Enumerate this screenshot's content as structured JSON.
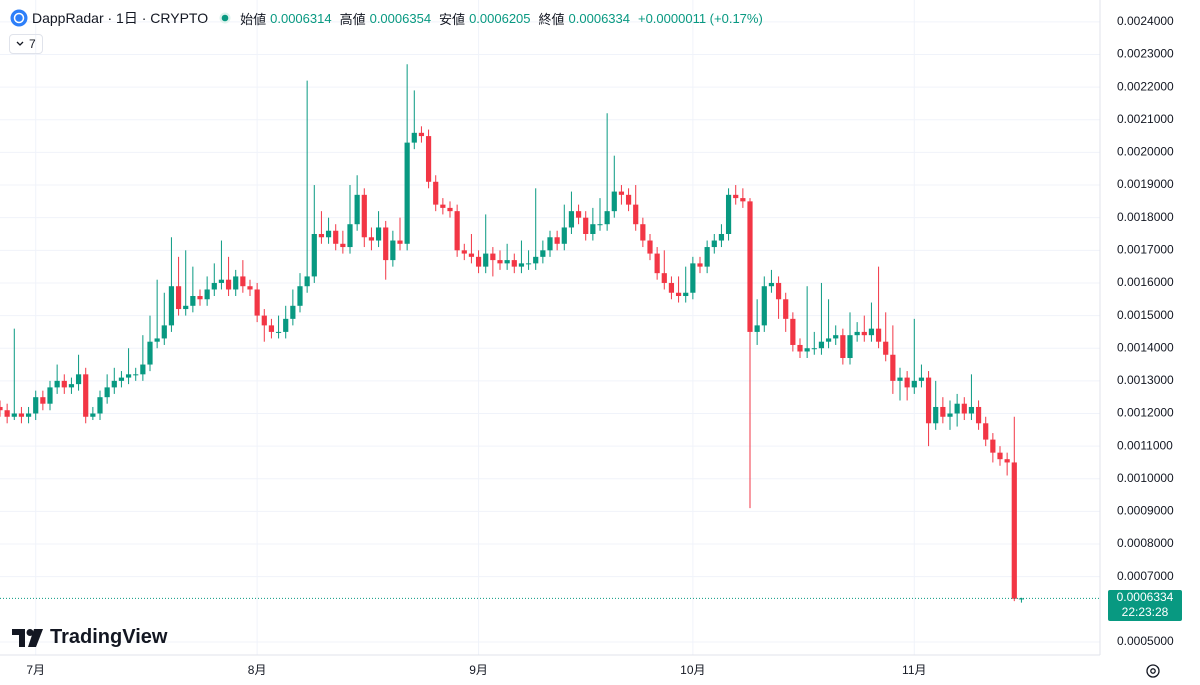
{
  "chart_data": {
    "type": "candlestick",
    "title": "DappRadar · 1日 · CRYPTO",
    "ohlc_labels": [
      "始値",
      "高値",
      "安値",
      "終値"
    ],
    "change": "+0.0000011 (+0.17%)",
    "indicator": "7",
    "brand": "TradingView",
    "countdown": "22:23:28",
    "up_color": "#089981",
    "down_color": "#f23645",
    "grid": true,
    "xlim": [
      0,
      154
    ],
    "xticks": [
      {
        "value": 5,
        "label": "7月"
      },
      {
        "value": 36,
        "label": "8月"
      },
      {
        "value": 67,
        "label": "9月"
      },
      {
        "value": 97,
        "label": "10月"
      },
      {
        "value": 128,
        "label": "11月"
      }
    ],
    "ylim": [
      0.00046,
      0.002467
    ],
    "yticks": [
      {
        "value": 0.0005,
        "label": "0.0005000"
      },
      {
        "value": 0.0007,
        "label": "0.0007000"
      },
      {
        "value": 0.0008,
        "label": "0.0008000"
      },
      {
        "value": 0.0009,
        "label": "0.0009000"
      },
      {
        "value": 0.001,
        "label": "0.0010000"
      },
      {
        "value": 0.0011,
        "label": "0.0011000"
      },
      {
        "value": 0.0012,
        "label": "0.0012000"
      },
      {
        "value": 0.0013,
        "label": "0.0013000"
      },
      {
        "value": 0.0014,
        "label": "0.0014000"
      },
      {
        "value": 0.0015,
        "label": "0.0015000"
      },
      {
        "value": 0.0016,
        "label": "0.0016000"
      },
      {
        "value": 0.0017,
        "label": "0.0017000"
      },
      {
        "value": 0.0018,
        "label": "0.0018000"
      },
      {
        "value": 0.0019,
        "label": "0.0019000"
      },
      {
        "value": 0.002,
        "label": "0.0020000"
      },
      {
        "value": 0.0021,
        "label": "0.0021000"
      },
      {
        "value": 0.0022,
        "label": "0.0022000"
      },
      {
        "value": 0.0023,
        "label": "0.0023000"
      },
      {
        "value": 0.0024,
        "label": "0.0024000"
      }
    ],
    "candles": [
      [
        0.00122,
        0.00124,
        0.00119,
        0.00121
      ],
      [
        0.00121,
        0.00123,
        0.00117,
        0.00119
      ],
      [
        0.00119,
        0.00146,
        0.00118,
        0.0012
      ],
      [
        0.0012,
        0.00122,
        0.00117,
        0.00119
      ],
      [
        0.00119,
        0.00122,
        0.00117,
        0.0012
      ],
      [
        0.0012,
        0.00127,
        0.00118,
        0.00125
      ],
      [
        0.00125,
        0.00127,
        0.00121,
        0.00123
      ],
      [
        0.00123,
        0.0013,
        0.00121,
        0.00128
      ],
      [
        0.00128,
        0.00135,
        0.00126,
        0.0013
      ],
      [
        0.0013,
        0.00132,
        0.00126,
        0.00128
      ],
      [
        0.00128,
        0.00131,
        0.00126,
        0.00129
      ],
      [
        0.00129,
        0.00138,
        0.00127,
        0.00132
      ],
      [
        0.00132,
        0.00134,
        0.00117,
        0.00119
      ],
      [
        0.00119,
        0.00122,
        0.00118,
        0.0012
      ],
      [
        0.0012,
        0.00127,
        0.00118,
        0.00125
      ],
      [
        0.00125,
        0.00132,
        0.00123,
        0.00128
      ],
      [
        0.00128,
        0.00134,
        0.00126,
        0.0013
      ],
      [
        0.0013,
        0.00133,
        0.00128,
        0.00131
      ],
      [
        0.00131,
        0.0014,
        0.00129,
        0.00132
      ],
      [
        0.00132,
        0.00134,
        0.0013,
        0.00132
      ],
      [
        0.00132,
        0.00144,
        0.0013,
        0.00135
      ],
      [
        0.00135,
        0.0015,
        0.00133,
        0.00142
      ],
      [
        0.00142,
        0.00161,
        0.0014,
        0.00143
      ],
      [
        0.00143,
        0.00157,
        0.00141,
        0.00147
      ],
      [
        0.00147,
        0.00174,
        0.00145,
        0.00159
      ],
      [
        0.00159,
        0.00168,
        0.0015,
        0.00152
      ],
      [
        0.00152,
        0.0017,
        0.0015,
        0.00153
      ],
      [
        0.00153,
        0.00165,
        0.00151,
        0.00156
      ],
      [
        0.00156,
        0.00158,
        0.00153,
        0.00155
      ],
      [
        0.00155,
        0.00162,
        0.00153,
        0.00158
      ],
      [
        0.00158,
        0.00166,
        0.00156,
        0.0016
      ],
      [
        0.0016,
        0.00173,
        0.00158,
        0.00161
      ],
      [
        0.00161,
        0.00168,
        0.00156,
        0.00158
      ],
      [
        0.00158,
        0.00164,
        0.00156,
        0.00162
      ],
      [
        0.00162,
        0.00167,
        0.00157,
        0.00159
      ],
      [
        0.00159,
        0.00161,
        0.00156,
        0.00158
      ],
      [
        0.00158,
        0.0016,
        0.00148,
        0.0015
      ],
      [
        0.0015,
        0.00152,
        0.00142,
        0.00147
      ],
      [
        0.00147,
        0.00149,
        0.00143,
        0.00145
      ],
      [
        0.00145,
        0.0015,
        0.00143,
        0.00145
      ],
      [
        0.00145,
        0.00153,
        0.00143,
        0.00149
      ],
      [
        0.00149,
        0.00158,
        0.00147,
        0.00153
      ],
      [
        0.00153,
        0.00163,
        0.00151,
        0.00159
      ],
      [
        0.00159,
        0.00222,
        0.00157,
        0.00162
      ],
      [
        0.00162,
        0.0019,
        0.0016,
        0.00175
      ],
      [
        0.00175,
        0.00182,
        0.00172,
        0.00174
      ],
      [
        0.00174,
        0.0018,
        0.00172,
        0.00176
      ],
      [
        0.00176,
        0.00178,
        0.0017,
        0.00172
      ],
      [
        0.00172,
        0.00176,
        0.00169,
        0.00171
      ],
      [
        0.00171,
        0.0019,
        0.00169,
        0.00178
      ],
      [
        0.00178,
        0.00193,
        0.00176,
        0.00187
      ],
      [
        0.00187,
        0.00189,
        0.00171,
        0.00174
      ],
      [
        0.00174,
        0.00177,
        0.0017,
        0.00173
      ],
      [
        0.00173,
        0.00182,
        0.00171,
        0.00177
      ],
      [
        0.00177,
        0.00179,
        0.00161,
        0.00167
      ],
      [
        0.00167,
        0.00176,
        0.00165,
        0.00173
      ],
      [
        0.00173,
        0.0018,
        0.0017,
        0.00172
      ],
      [
        0.00172,
        0.00227,
        0.0017,
        0.00203
      ],
      [
        0.00203,
        0.00219,
        0.00201,
        0.00206
      ],
      [
        0.00206,
        0.00208,
        0.00203,
        0.00205
      ],
      [
        0.00205,
        0.00207,
        0.00189,
        0.00191
      ],
      [
        0.00191,
        0.00193,
        0.00182,
        0.00184
      ],
      [
        0.00184,
        0.00186,
        0.00181,
        0.00183
      ],
      [
        0.00183,
        0.00185,
        0.0018,
        0.00182
      ],
      [
        0.00182,
        0.00184,
        0.00168,
        0.0017
      ],
      [
        0.0017,
        0.00172,
        0.00167,
        0.00169
      ],
      [
        0.00169,
        0.00175,
        0.00166,
        0.00168
      ],
      [
        0.00168,
        0.0017,
        0.00163,
        0.00165
      ],
      [
        0.00165,
        0.00181,
        0.00163,
        0.00169
      ],
      [
        0.00169,
        0.00171,
        0.00162,
        0.00167
      ],
      [
        0.00167,
        0.0017,
        0.00164,
        0.00166
      ],
      [
        0.00166,
        0.00172,
        0.00164,
        0.00167
      ],
      [
        0.00167,
        0.00169,
        0.00163,
        0.00165
      ],
      [
        0.00165,
        0.00173,
        0.00163,
        0.00166
      ],
      [
        0.00166,
        0.0017,
        0.00164,
        0.00166
      ],
      [
        0.00166,
        0.00189,
        0.00164,
        0.00168
      ],
      [
        0.00168,
        0.00173,
        0.00166,
        0.0017
      ],
      [
        0.0017,
        0.00176,
        0.00168,
        0.00174
      ],
      [
        0.00174,
        0.00176,
        0.0017,
        0.00172
      ],
      [
        0.00172,
        0.00184,
        0.0017,
        0.00177
      ],
      [
        0.00177,
        0.00188,
        0.00175,
        0.00182
      ],
      [
        0.00182,
        0.00184,
        0.00178,
        0.0018
      ],
      [
        0.0018,
        0.00182,
        0.00173,
        0.00175
      ],
      [
        0.00175,
        0.00183,
        0.00173,
        0.00178
      ],
      [
        0.00178,
        0.00186,
        0.00176,
        0.00178
      ],
      [
        0.00178,
        0.00212,
        0.00176,
        0.00182
      ],
      [
        0.00182,
        0.00199,
        0.0018,
        0.00188
      ],
      [
        0.00188,
        0.0019,
        0.00184,
        0.00187
      ],
      [
        0.00187,
        0.00189,
        0.00182,
        0.00184
      ],
      [
        0.00184,
        0.0019,
        0.00176,
        0.00178
      ],
      [
        0.00178,
        0.0018,
        0.00171,
        0.00173
      ],
      [
        0.00173,
        0.00175,
        0.00167,
        0.00169
      ],
      [
        0.00169,
        0.00171,
        0.00161,
        0.00163
      ],
      [
        0.00163,
        0.0017,
        0.00158,
        0.0016
      ],
      [
        0.0016,
        0.00162,
        0.00155,
        0.00157
      ],
      [
        0.00157,
        0.00162,
        0.00154,
        0.00156
      ],
      [
        0.00156,
        0.00165,
        0.00154,
        0.00157
      ],
      [
        0.00157,
        0.00168,
        0.00155,
        0.00166
      ],
      [
        0.00166,
        0.00168,
        0.00163,
        0.00165
      ],
      [
        0.00165,
        0.00173,
        0.00163,
        0.00171
      ],
      [
        0.00171,
        0.00175,
        0.00169,
        0.00173
      ],
      [
        0.00173,
        0.00178,
        0.00171,
        0.00175
      ],
      [
        0.00175,
        0.00189,
        0.00173,
        0.00187
      ],
      [
        0.00187,
        0.0019,
        0.00184,
        0.00186
      ],
      [
        0.00186,
        0.00189,
        0.00183,
        0.00185
      ],
      [
        0.00185,
        0.00186,
        0.00091,
        0.00145
      ],
      [
        0.00145,
        0.00155,
        0.00141,
        0.00147
      ],
      [
        0.00147,
        0.00162,
        0.00145,
        0.00159
      ],
      [
        0.00159,
        0.00164,
        0.00157,
        0.0016
      ],
      [
        0.0016,
        0.00162,
        0.00149,
        0.00155
      ],
      [
        0.00155,
        0.00157,
        0.00145,
        0.00149
      ],
      [
        0.00149,
        0.00151,
        0.00139,
        0.00141
      ],
      [
        0.00141,
        0.00143,
        0.00137,
        0.00139
      ],
      [
        0.00139,
        0.00159,
        0.00137,
        0.0014
      ],
      [
        0.0014,
        0.00145,
        0.00138,
        0.0014
      ],
      [
        0.0014,
        0.0016,
        0.00138,
        0.00142
      ],
      [
        0.00142,
        0.00155,
        0.0014,
        0.00143
      ],
      [
        0.00143,
        0.00147,
        0.00141,
        0.00144
      ],
      [
        0.00144,
        0.00146,
        0.00135,
        0.00137
      ],
      [
        0.00137,
        0.00151,
        0.00135,
        0.00144
      ],
      [
        0.00144,
        0.00148,
        0.00142,
        0.00145
      ],
      [
        0.00145,
        0.0015,
        0.00142,
        0.00144
      ],
      [
        0.00144,
        0.00154,
        0.00142,
        0.00146
      ],
      [
        0.00146,
        0.00165,
        0.0014,
        0.00142
      ],
      [
        0.00142,
        0.00151,
        0.00136,
        0.00138
      ],
      [
        0.00138,
        0.00147,
        0.00126,
        0.0013
      ],
      [
        0.0013,
        0.00134,
        0.00124,
        0.00131
      ],
      [
        0.00131,
        0.00133,
        0.00124,
        0.00128
      ],
      [
        0.00128,
        0.00149,
        0.00126,
        0.0013
      ],
      [
        0.0013,
        0.00135,
        0.00128,
        0.00131
      ],
      [
        0.00131,
        0.00133,
        0.0011,
        0.00117
      ],
      [
        0.00117,
        0.0013,
        0.00115,
        0.00122
      ],
      [
        0.00122,
        0.00125,
        0.00117,
        0.00119
      ],
      [
        0.00119,
        0.00124,
        0.00115,
        0.0012
      ],
      [
        0.0012,
        0.00126,
        0.00116,
        0.00123
      ],
      [
        0.00123,
        0.00125,
        0.00118,
        0.0012
      ],
      [
        0.0012,
        0.00132,
        0.00118,
        0.00122
      ],
      [
        0.00122,
        0.00124,
        0.00115,
        0.00117
      ],
      [
        0.00117,
        0.00119,
        0.0011,
        0.00112
      ],
      [
        0.00112,
        0.00114,
        0.00105,
        0.00108
      ],
      [
        0.00108,
        0.0011,
        0.00104,
        0.00106
      ],
      [
        0.00106,
        0.00108,
        0.00101,
        0.00105
      ],
      [
        0.00105,
        0.00119,
        0.000625,
        0.0006323
      ],
      [
        0.0006314,
        0.0006354,
        0.0006205,
        0.0006334
      ]
    ]
  }
}
